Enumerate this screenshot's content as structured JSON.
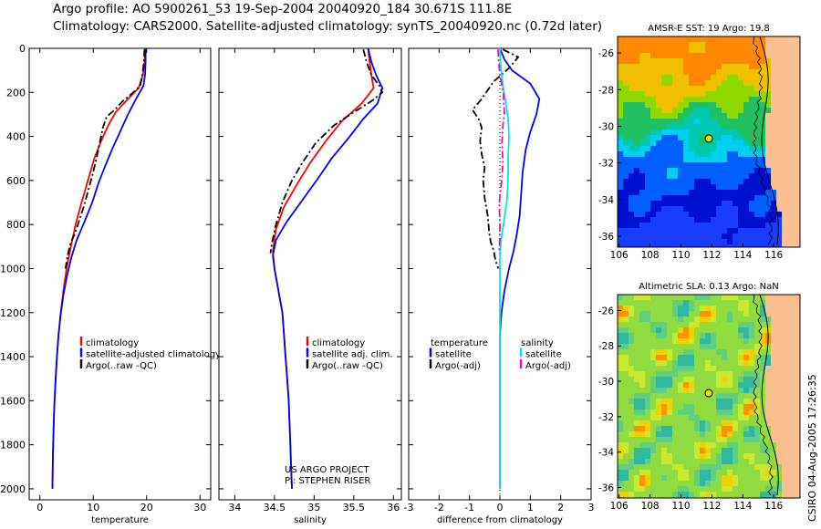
{
  "header": {
    "line1": "Argo profile: AO 5900261_53 19-Sep-2004 20040920_184 30.671S 111.8E",
    "line2": "Climatology: CARS2000. Satellite-adjusted climatology: synTS_20040920.nc (0.72d later)"
  },
  "credit": "CSIRO 04-Aug-2005 17:26:35",
  "colors": {
    "climatology": "#ff0000",
    "satellite": "#0000ff",
    "argo": "#000000",
    "satellite_salinity": "#00e5ee",
    "argo_salinity": "#ee00ee"
  },
  "chart_data": [
    {
      "type": "line",
      "name": "temperature-profile",
      "xlabel": "temperature",
      "ylabel": "",
      "xlim": [
        -2,
        32
      ],
      "ylim": [
        2050,
        0
      ],
      "y_inverted": true,
      "xticks": [
        0,
        10,
        20,
        30
      ],
      "yticks": [
        0,
        200,
        400,
        600,
        800,
        1000,
        1200,
        1400,
        1600,
        1800,
        2000
      ],
      "legend": [
        "climatology",
        "satellite-adjusted climatology",
        "Argo(..raw -QC)"
      ],
      "legend_position": "lower-right",
      "series": [
        {
          "name": "climatology",
          "color": "#ff0000",
          "style": "solid",
          "points": [
            [
              19.8,
              0
            ],
            [
              19.6,
              60
            ],
            [
              19.3,
              120
            ],
            [
              18.5,
              180
            ],
            [
              16.5,
              230
            ],
            [
              14.2,
              290
            ],
            [
              12.8,
              350
            ],
            [
              11.5,
              420
            ],
            [
              10.2,
              500
            ],
            [
              9.0,
              600
            ],
            [
              7.8,
              700
            ],
            [
              6.7,
              800
            ],
            [
              5.8,
              900
            ],
            [
              5.0,
              1000
            ],
            [
              4.4,
              1100
            ],
            [
              3.9,
              1200
            ],
            [
              3.5,
              1300
            ],
            [
              3.2,
              1400
            ],
            [
              2.95,
              1500
            ],
            [
              2.75,
              1600
            ],
            [
              2.6,
              1700
            ],
            [
              2.5,
              1800
            ],
            [
              2.4,
              1900
            ],
            [
              2.35,
              2000
            ]
          ]
        },
        {
          "name": "satellite-adjusted climatology",
          "color": "#0000ff",
          "style": "solid",
          "points": [
            [
              19.8,
              0
            ],
            [
              19.8,
              60
            ],
            [
              19.7,
              120
            ],
            [
              19.4,
              170
            ],
            [
              18.0,
              230
            ],
            [
              16.5,
              300
            ],
            [
              15.0,
              380
            ],
            [
              13.5,
              460
            ],
            [
              12.3,
              530
            ],
            [
              11.0,
              610
            ],
            [
              9.8,
              700
            ],
            [
              8.3,
              790
            ],
            [
              6.9,
              870
            ],
            [
              5.9,
              950
            ],
            [
              5.1,
              1030
            ],
            [
              4.4,
              1120
            ],
            [
              3.9,
              1210
            ],
            [
              3.5,
              1300
            ],
            [
              3.2,
              1400
            ],
            [
              2.95,
              1500
            ],
            [
              2.75,
              1600
            ],
            [
              2.6,
              1700
            ],
            [
              2.5,
              1800
            ],
            [
              2.4,
              1900
            ],
            [
              2.35,
              2000
            ]
          ]
        },
        {
          "name": "Argo(..raw -QC)",
          "color": "#000000",
          "style": "dash",
          "points": [
            [
              19.6,
              5
            ],
            [
              19.5,
              60
            ],
            [
              19.2,
              120
            ],
            [
              18.8,
              170
            ],
            [
              17.5,
              200
            ],
            [
              15.5,
              240
            ],
            [
              14.0,
              280
            ],
            [
              12.5,
              310
            ],
            [
              11.8,
              360
            ],
            [
              11.2,
              430
            ],
            [
              10.6,
              500
            ],
            [
              9.8,
              580
            ],
            [
              9.0,
              650
            ],
            [
              8.2,
              720
            ],
            [
              7.4,
              780
            ],
            [
              6.6,
              840
            ],
            [
              5.8,
              880
            ],
            [
              5.2,
              940
            ],
            [
              4.8,
              1000
            ]
          ]
        }
      ]
    },
    {
      "type": "line",
      "name": "salinity-profile",
      "xlabel": "salinity",
      "ylabel": "",
      "xlim": [
        33.8,
        36.1
      ],
      "ylim": [
        2050,
        0
      ],
      "y_inverted": true,
      "xticks": [
        34,
        34.5,
        35,
        35.5,
        36
      ],
      "yticks": [
        0,
        200,
        400,
        600,
        800,
        1000,
        1200,
        1400,
        1600,
        1800,
        2000
      ],
      "legend": [
        "climatology",
        "satellite adj. clim.",
        "Argo(..raw -QC)"
      ],
      "legend_position": "lower-right",
      "annotation": [
        "US ARGO PROJECT",
        "PI: STEPHEN RISER"
      ],
      "series": [
        {
          "name": "climatology",
          "color": "#ff0000",
          "style": "solid",
          "points": [
            [
              35.68,
              0
            ],
            [
              35.7,
              60
            ],
            [
              35.72,
              120
            ],
            [
              35.75,
              180
            ],
            [
              35.6,
              250
            ],
            [
              35.35,
              330
            ],
            [
              35.15,
              420
            ],
            [
              34.95,
              520
            ],
            [
              34.78,
              620
            ],
            [
              34.62,
              720
            ],
            [
              34.52,
              820
            ],
            [
              34.48,
              920
            ],
            [
              34.5,
              1000
            ],
            [
              34.55,
              1100
            ],
            [
              34.6,
              1200
            ],
            [
              34.62,
              1300
            ],
            [
              34.64,
              1400
            ],
            [
              34.66,
              1500
            ],
            [
              34.68,
              1600
            ],
            [
              34.69,
              1700
            ],
            [
              34.7,
              1800
            ],
            [
              34.71,
              1900
            ],
            [
              34.72,
              2000
            ]
          ]
        },
        {
          "name": "satellite adj. clim.",
          "color": "#0000ff",
          "style": "solid",
          "points": [
            [
              35.68,
              0
            ],
            [
              35.72,
              60
            ],
            [
              35.78,
              120
            ],
            [
              35.86,
              180
            ],
            [
              35.8,
              250
            ],
            [
              35.62,
              320
            ],
            [
              35.45,
              400
            ],
            [
              35.22,
              500
            ],
            [
              35.05,
              590
            ],
            [
              34.85,
              690
            ],
            [
              34.65,
              790
            ],
            [
              34.52,
              870
            ],
            [
              34.48,
              940
            ],
            [
              34.5,
              1000
            ],
            [
              34.55,
              1100
            ],
            [
              34.6,
              1200
            ],
            [
              34.62,
              1300
            ],
            [
              34.64,
              1400
            ],
            [
              34.66,
              1500
            ],
            [
              34.68,
              1600
            ],
            [
              34.69,
              1700
            ],
            [
              34.7,
              1800
            ],
            [
              34.71,
              1900
            ],
            [
              34.72,
              2000
            ]
          ]
        },
        {
          "name": "Argo(..raw -QC)",
          "color": "#000000",
          "style": "dash",
          "points": [
            [
              35.62,
              5
            ],
            [
              35.66,
              60
            ],
            [
              35.72,
              120
            ],
            [
              35.82,
              170
            ],
            [
              35.86,
              200
            ],
            [
              35.72,
              240
            ],
            [
              35.5,
              290
            ],
            [
              35.25,
              350
            ],
            [
              35.02,
              430
            ],
            [
              34.85,
              520
            ],
            [
              34.72,
              600
            ],
            [
              34.6,
              700
            ],
            [
              34.52,
              800
            ],
            [
              34.47,
              880
            ],
            [
              34.45,
              930
            ]
          ]
        }
      ]
    },
    {
      "type": "line",
      "name": "difference-profile",
      "xlabel": "difference from climatology",
      "ylabel": "",
      "xlim": [
        -3,
        3
      ],
      "ylim": [
        2050,
        0
      ],
      "y_inverted": true,
      "xticks": [
        -3,
        -2,
        -1,
        0,
        1,
        2,
        3
      ],
      "yticks": [
        0,
        200,
        400,
        600,
        800,
        1000,
        1200,
        1400,
        1600,
        1800,
        2000
      ],
      "zero_line": "dotted",
      "legend": [
        "temperature",
        "satellite",
        "Argo(-adj)",
        "salinity",
        "satellite",
        "Argo(-adj)"
      ],
      "legend_position": "lower-center",
      "series": [
        {
          "name": "temperature satellite",
          "color": "#0000ff",
          "style": "solid",
          "points": [
            [
              0.0,
              0
            ],
            [
              0.15,
              50
            ],
            [
              0.4,
              100
            ],
            [
              1.0,
              160
            ],
            [
              1.3,
              230
            ],
            [
              1.2,
              300
            ],
            [
              1.0,
              380
            ],
            [
              0.85,
              460
            ],
            [
              0.75,
              560
            ],
            [
              0.7,
              660
            ],
            [
              0.65,
              760
            ],
            [
              0.55,
              850
            ],
            [
              0.45,
              920
            ],
            [
              0.3,
              1000
            ],
            [
              0.15,
              1100
            ],
            [
              0.05,
              1200
            ],
            [
              0.0,
              1300
            ],
            [
              0.0,
              1500
            ],
            [
              0.0,
              2000
            ]
          ]
        },
        {
          "name": "temperature Argo(-adj)",
          "color": "#000000",
          "style": "dash",
          "points": [
            [
              0.1,
              5
            ],
            [
              0.6,
              40
            ],
            [
              0.3,
              90
            ],
            [
              -0.2,
              150
            ],
            [
              -0.6,
              230
            ],
            [
              -0.9,
              280
            ],
            [
              -0.7,
              320
            ],
            [
              -0.6,
              360
            ],
            [
              -0.65,
              420
            ],
            [
              -0.6,
              480
            ],
            [
              -0.5,
              540
            ],
            [
              -0.55,
              600
            ],
            [
              -0.5,
              680
            ],
            [
              -0.4,
              760
            ],
            [
              -0.35,
              840
            ],
            [
              -0.3,
              880
            ],
            [
              -0.2,
              920
            ],
            [
              -0.15,
              960
            ],
            [
              -0.05,
              1000
            ]
          ]
        },
        {
          "name": "salinity satellite",
          "color": "#00e5ee",
          "style": "solid",
          "points": [
            [
              0.0,
              0
            ],
            [
              0.02,
              60
            ],
            [
              0.06,
              120
            ],
            [
              0.11,
              180
            ],
            [
              0.2,
              250
            ],
            [
              0.27,
              320
            ],
            [
              0.3,
              400
            ],
            [
              0.27,
              500
            ],
            [
              0.27,
              590
            ],
            [
              0.23,
              690
            ],
            [
              0.13,
              790
            ],
            [
              0.04,
              870
            ],
            [
              0.0,
              940
            ],
            [
              0.0,
              1000
            ],
            [
              0.0,
              1100
            ],
            [
              0.0,
              1200
            ],
            [
              0.0,
              1500
            ],
            [
              0.0,
              2000
            ]
          ]
        },
        {
          "name": "salinity Argo(-adj)",
          "color": "#ee00ee",
          "style": "dash",
          "points": [
            [
              -0.06,
              5
            ],
            [
              -0.04,
              60
            ],
            [
              0.0,
              120
            ],
            [
              0.07,
              170
            ],
            [
              0.12,
              200
            ],
            [
              0.12,
              240
            ],
            [
              0.15,
              290
            ],
            [
              0.1,
              350
            ],
            [
              0.07,
              430
            ],
            [
              0.1,
              520
            ],
            [
              0.06,
              600
            ],
            [
              -0.02,
              700
            ],
            [
              0.0,
              800
            ],
            [
              -0.01,
              880
            ],
            [
              -0.03,
              930
            ]
          ]
        }
      ]
    },
    {
      "type": "heatmap",
      "name": "sst-map",
      "title": "AMSR-E SST: 19 Argo: 19.8",
      "xlim": [
        105.9,
        117.7
      ],
      "ylim": [
        -36.6,
        -25.1
      ],
      "xticks": [
        106,
        108,
        110,
        112,
        114,
        116
      ],
      "yticks": [
        -26,
        -28,
        -30,
        -32,
        -34,
        -36
      ],
      "argo_position": [
        111.8,
        -30.671
      ],
      "colors": {
        "land": "#fcc090",
        "warm": "#ff9a00",
        "mid": "#00d060",
        "cool": "#00c8ff",
        "cold": "#0000c8"
      }
    },
    {
      "type": "heatmap",
      "name": "sla-map",
      "title": "Altimetric SLA: 0.13 Argo: NaN",
      "xlim": [
        105.9,
        117.7
      ],
      "ylim": [
        -36.6,
        -25.1
      ],
      "xticks": [
        106,
        108,
        110,
        112,
        114,
        116
      ],
      "yticks": [
        -26,
        -28,
        -30,
        -32,
        -34,
        -36
      ],
      "argo_position": [
        111.8,
        -30.671
      ],
      "colors": {
        "land": "#fcc090",
        "base": "#a0e040",
        "low": "#30c0a0",
        "high": "#ff8000"
      }
    }
  ]
}
